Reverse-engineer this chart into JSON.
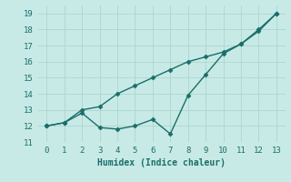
{
  "x": [
    0,
    1,
    2,
    3,
    4,
    5,
    6,
    7,
    8,
    9,
    10,
    11,
    12,
    13
  ],
  "line1": [
    12.0,
    12.2,
    13.0,
    13.2,
    14.0,
    14.5,
    15.0,
    15.5,
    16.0,
    16.3,
    16.6,
    17.1,
    18.0,
    19.0
  ],
  "line2": [
    12.0,
    12.2,
    12.8,
    11.9,
    11.8,
    12.0,
    12.4,
    11.5,
    13.9,
    15.2,
    16.5,
    17.1,
    17.9,
    19.0
  ],
  "line_color": "#1a6e6a",
  "bg_color": "#c8eae6",
  "grid_color": "#b0d8d2",
  "xlabel": "Humidex (Indice chaleur)",
  "ylim": [
    11,
    19.5
  ],
  "xlim": [
    -0.5,
    13.5
  ],
  "yticks": [
    11,
    12,
    13,
    14,
    15,
    16,
    17,
    18,
    19
  ],
  "xticks": [
    0,
    1,
    2,
    3,
    4,
    5,
    6,
    7,
    8,
    9,
    10,
    11,
    12,
    13
  ],
  "marker": "D",
  "markersize": 2.5,
  "linewidth": 1.0,
  "tick_fontsize": 6.5,
  "xlabel_fontsize": 7.0
}
